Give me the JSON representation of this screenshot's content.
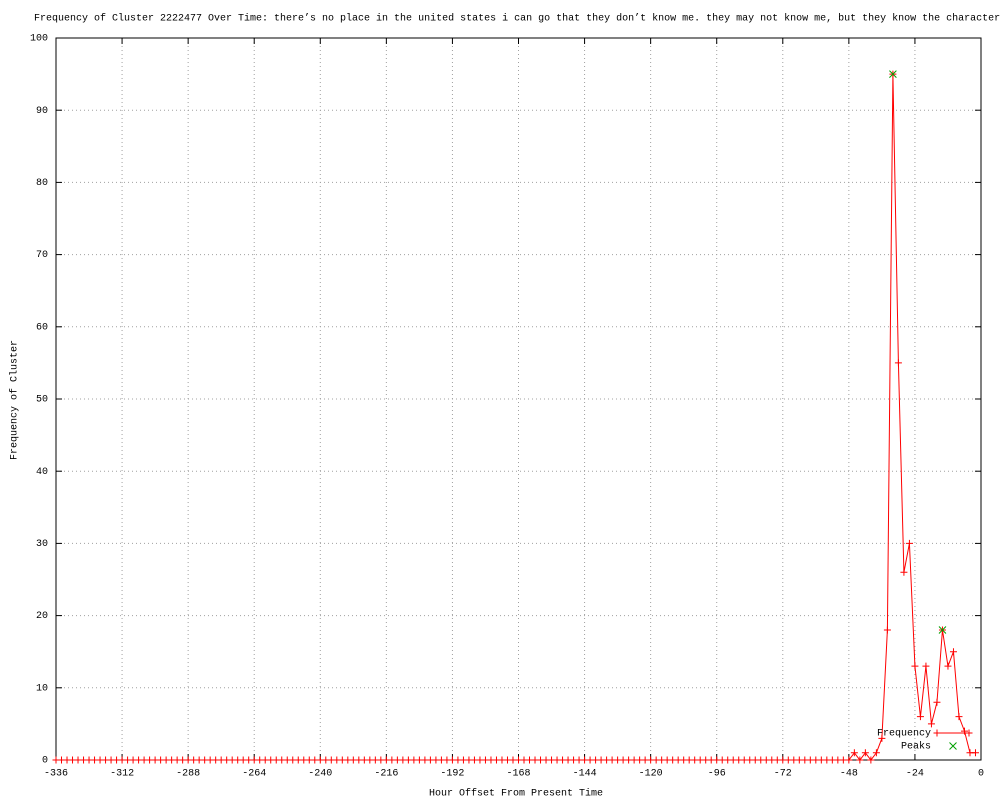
{
  "chart_data": {
    "type": "line",
    "title": "Frequency of Cluster 2222477 Over Time: there’s no place in the united states i can go that they don’t know me. they may not know me, but they know the character",
    "x_label": "Hour Offset From Present Time",
    "y_label": "Frequency of Cluster",
    "xlim": [
      -336,
      0
    ],
    "ylim": [
      0,
      100
    ],
    "xticks": [
      -336,
      -312,
      -288,
      -264,
      -240,
      -216,
      -192,
      -168,
      -144,
      -120,
      -96,
      -72,
      -48,
      -24,
      0
    ],
    "yticks": [
      0,
      10,
      20,
      30,
      40,
      50,
      60,
      70,
      80,
      90,
      100
    ],
    "grid": true,
    "legend": "lower right",
    "series": [
      {
        "name": "Frequency",
        "color": "#ff0000",
        "marker": "plus",
        "x": [
          -336,
          -334,
          -332,
          -330,
          -328,
          -326,
          -324,
          -322,
          -320,
          -318,
          -316,
          -314,
          -312,
          -310,
          -308,
          -306,
          -304,
          -302,
          -300,
          -298,
          -296,
          -294,
          -292,
          -290,
          -288,
          -286,
          -284,
          -282,
          -280,
          -278,
          -276,
          -274,
          -272,
          -270,
          -268,
          -266,
          -264,
          -262,
          -260,
          -258,
          -256,
          -254,
          -252,
          -250,
          -248,
          -246,
          -244,
          -242,
          -240,
          -238,
          -236,
          -234,
          -232,
          -230,
          -228,
          -226,
          -224,
          -222,
          -220,
          -218,
          -216,
          -214,
          -212,
          -210,
          -208,
          -206,
          -204,
          -202,
          -200,
          -198,
          -196,
          -194,
          -192,
          -190,
          -188,
          -186,
          -184,
          -182,
          -180,
          -178,
          -176,
          -174,
          -172,
          -170,
          -168,
          -166,
          -164,
          -162,
          -160,
          -158,
          -156,
          -154,
          -152,
          -150,
          -148,
          -146,
          -144,
          -142,
          -140,
          -138,
          -136,
          -134,
          -132,
          -130,
          -128,
          -126,
          -124,
          -122,
          -120,
          -118,
          -116,
          -114,
          -112,
          -110,
          -108,
          -106,
          -104,
          -102,
          -100,
          -98,
          -96,
          -94,
          -92,
          -90,
          -88,
          -86,
          -84,
          -82,
          -80,
          -78,
          -76,
          -74,
          -72,
          -70,
          -68,
          -66,
          -64,
          -62,
          -60,
          -58,
          -56,
          -54,
          -52,
          -50,
          -48,
          -46,
          -44,
          -42,
          -40,
          -38,
          -36,
          -34,
          -32,
          -30,
          -28,
          -26,
          -24,
          -22,
          -20,
          -18,
          -16,
          -14,
          -12,
          -10,
          -8,
          -6,
          -4,
          -2
        ],
        "values": [
          0,
          0,
          0,
          0,
          0,
          0,
          0,
          0,
          0,
          0,
          0,
          0,
          0,
          0,
          0,
          0,
          0,
          0,
          0,
          0,
          0,
          0,
          0,
          0,
          0,
          0,
          0,
          0,
          0,
          0,
          0,
          0,
          0,
          0,
          0,
          0,
          0,
          0,
          0,
          0,
          0,
          0,
          0,
          0,
          0,
          0,
          0,
          0,
          0,
          0,
          0,
          0,
          0,
          0,
          0,
          0,
          0,
          0,
          0,
          0,
          0,
          0,
          0,
          0,
          0,
          0,
          0,
          0,
          0,
          0,
          0,
          0,
          0,
          0,
          0,
          0,
          0,
          0,
          0,
          0,
          0,
          0,
          0,
          0,
          0,
          0,
          0,
          0,
          0,
          0,
          0,
          0,
          0,
          0,
          0,
          0,
          0,
          0,
          0,
          0,
          0,
          0,
          0,
          0,
          0,
          0,
          0,
          0,
          0,
          0,
          0,
          0,
          0,
          0,
          0,
          0,
          0,
          0,
          0,
          0,
          0,
          0,
          0,
          0,
          0,
          0,
          0,
          0,
          0,
          0,
          0,
          0,
          0,
          0,
          0,
          0,
          0,
          0,
          0,
          0,
          0,
          0,
          0,
          0,
          0,
          1,
          0,
          1,
          0,
          1,
          3,
          18,
          95,
          55,
          26,
          30,
          13,
          6,
          13,
          5,
          8,
          18,
          13,
          15,
          6,
          4,
          1,
          1
        ]
      },
      {
        "name": "Peaks",
        "color": "#00a000",
        "marker": "cross",
        "x": [
          -32,
          -14
        ],
        "values": [
          95,
          18
        ]
      }
    ]
  }
}
